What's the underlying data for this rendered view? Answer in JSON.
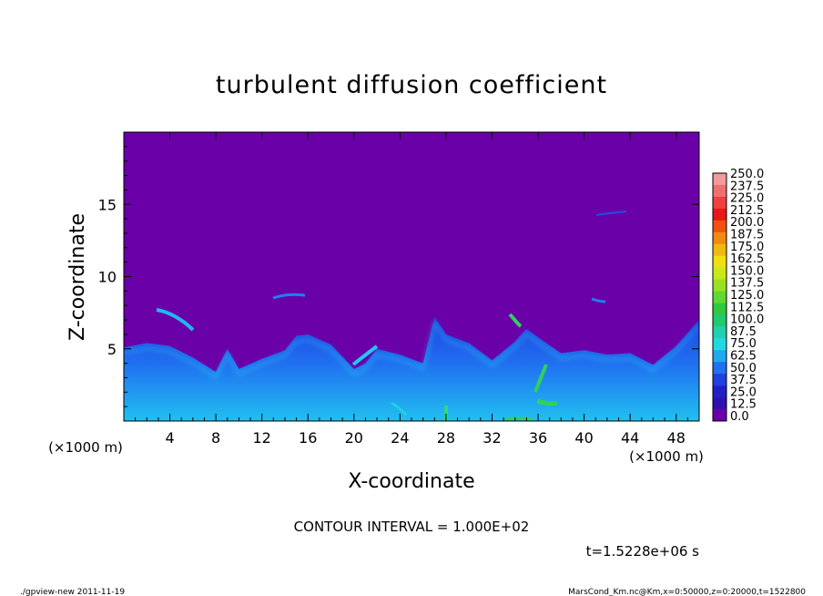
{
  "chart_data": {
    "type": "heatmap",
    "title": "turbulent diffusion coefficient",
    "xlabel": "X-coordinate",
    "ylabel": "Z-coordinate",
    "x_unit": "(×1000 m)",
    "y_unit": "(×1000 m)",
    "xlim": [
      0,
      50
    ],
    "ylim": [
      0,
      20
    ],
    "x_ticks": [
      4,
      8,
      12,
      16,
      20,
      24,
      28,
      32,
      36,
      40,
      44,
      48
    ],
    "y_ticks": [
      5,
      10,
      15
    ],
    "colorbar": {
      "levels": [
        "250.0",
        "237.5",
        "225.0",
        "212.5",
        "200.0",
        "187.5",
        "175.0",
        "162.5",
        "150.0",
        "137.5",
        "125.0",
        "112.5",
        "100.0",
        "87.5",
        "75.0",
        "62.5",
        "50.0",
        "37.5",
        "25.0",
        "12.5",
        "0.0"
      ],
      "colors": [
        "#f09a9a",
        "#f07070",
        "#f04040",
        "#e81818",
        "#f05010",
        "#f08a10",
        "#f0b810",
        "#f0e010",
        "#c8e818",
        "#98e020",
        "#60d830",
        "#30c840",
        "#20c870",
        "#20d0b0",
        "#20d8e0",
        "#20a8f0",
        "#2070f0",
        "#2040e0",
        "#2020c8",
        "#3010b0",
        "#6a00a8"
      ]
    },
    "background_color": "#6a00a8",
    "contour_interval": "CONTOUR INTERVAL = 1.000E+02",
    "time_label": "t=1.5228e+06 s",
    "turbulent_layer_top_profile": {
      "x": [
        0,
        2,
        4,
        6,
        8,
        9,
        10,
        12,
        14,
        15,
        16,
        18,
        20,
        21,
        22,
        24,
        26,
        27,
        28,
        30,
        32,
        34,
        35,
        36,
        38,
        40,
        42,
        44,
        46,
        48,
        50
      ],
      "z": [
        5.1,
        5.4,
        5.2,
        4.4,
        3.4,
        5.0,
        3.6,
        4.3,
        4.9,
        5.9,
        6.0,
        5.3,
        3.6,
        4.0,
        5.0,
        4.6,
        4.0,
        7.2,
        6.0,
        5.4,
        4.2,
        5.5,
        6.4,
        5.8,
        4.7,
        4.9,
        4.6,
        4.7,
        3.9,
        5.2,
        7.0
      ]
    }
  },
  "footer": {
    "left": "./gpview-new  2011-11-19",
    "right": "MarsCond_Km.nc@Km,x=0:50000,z=0:20000,t=1522800"
  }
}
